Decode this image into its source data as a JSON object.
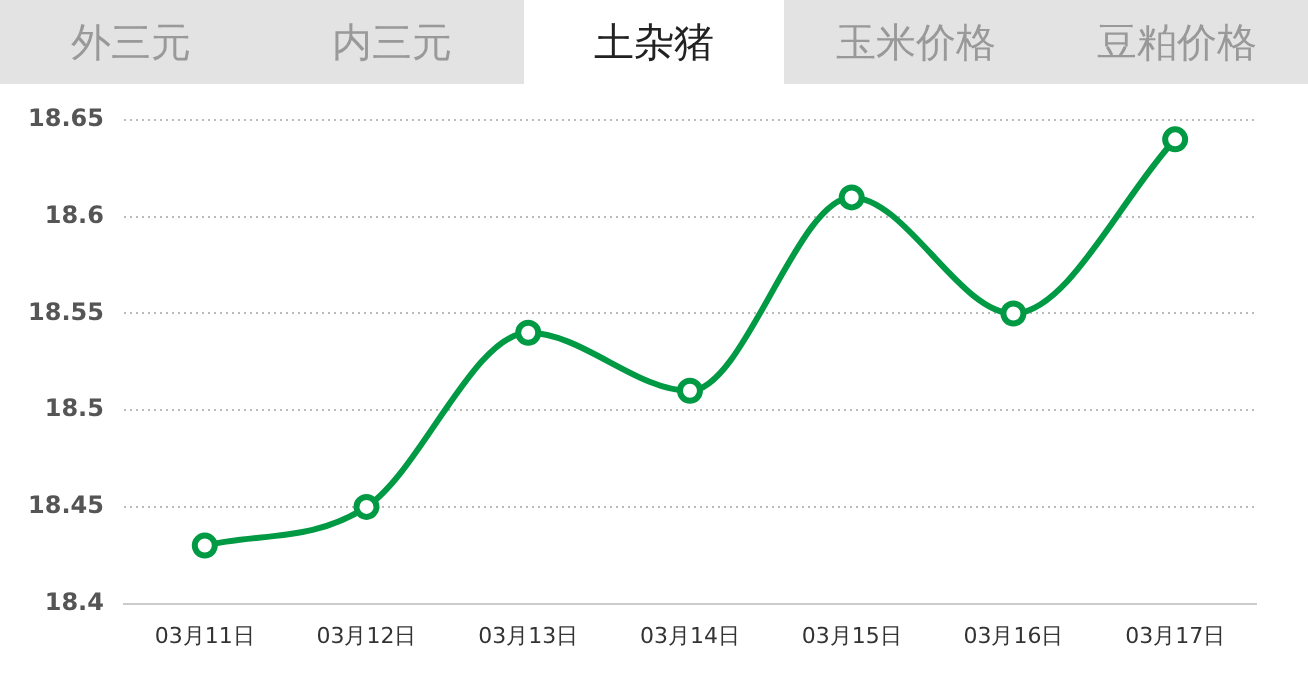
{
  "chart_data": {
    "type": "line",
    "title": "土杂猪",
    "annotations": [
      "外三元",
      "内三元",
      "玉米价格",
      "豆粕价格"
    ],
    "categories": [
      "03月11日",
      "03月12日",
      "03月13日",
      "03月14日",
      "03月15日",
      "03月16日",
      "03月17日"
    ],
    "series": [
      {
        "color": "#009944",
        "values": [
          18.43,
          18.45,
          18.54,
          18.51,
          18.61,
          18.55,
          18.64
        ]
      }
    ],
    "ylim": [
      18.4,
      18.65
    ],
    "yticks": [
      18.4,
      18.45,
      18.5,
      18.55,
      18.6,
      18.65
    ],
    "grid": "y",
    "legend": false,
    "marker": "circle",
    "line_style": "solid"
  }
}
